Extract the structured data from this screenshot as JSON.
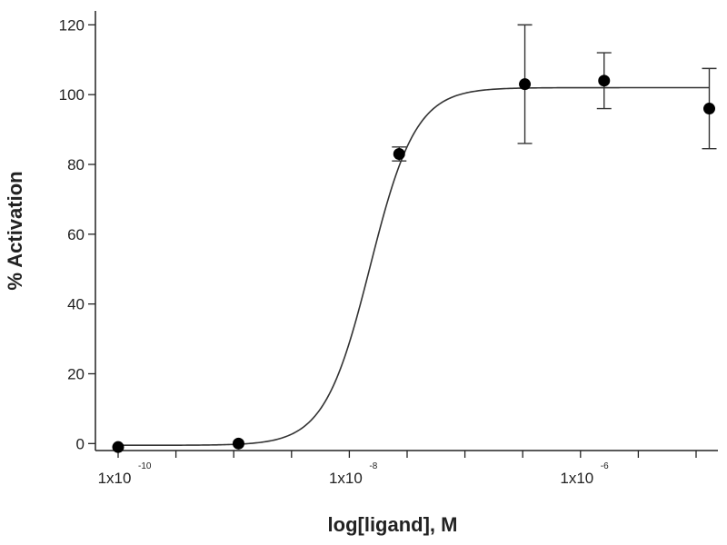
{
  "chart_data": {
    "type": "scatter",
    "xlabel": "log[ligand], M",
    "ylabel": "% Activation",
    "x_scale": "log10",
    "xlim": [
      1e-10,
      1e-05
    ],
    "ylim": [
      -2,
      124
    ],
    "y_ticks": [
      0,
      20,
      40,
      60,
      80,
      100,
      120
    ],
    "x_major_ticks": [
      {
        "x": 1e-10,
        "base": "1x10",
        "exp": "-10"
      },
      {
        "x": 1e-08,
        "base": "1x10",
        "exp": "-8"
      },
      {
        "x": 1e-06,
        "base": "1x10",
        "exp": "-6"
      }
    ],
    "grid": false,
    "series": [
      {
        "points": [
          {
            "x": 1e-10,
            "y": -1,
            "err": 0
          },
          {
            "x": 1.1e-09,
            "y": 0,
            "err": 0
          },
          {
            "x": 2.7e-08,
            "y": 83,
            "err": 2
          },
          {
            "x": 3.3e-07,
            "y": 103,
            "err": 17
          },
          {
            "x": 1.6e-06,
            "y": 104,
            "err": 8
          },
          {
            "x": 1.3e-05,
            "y": 96,
            "err": 11.5
          }
        ],
        "fit": {
          "model": "sigmoidal dose-response",
          "bottom": -0.5,
          "top": 102,
          "log_ec50": -7.82,
          "hill": 2.2
        }
      }
    ]
  }
}
